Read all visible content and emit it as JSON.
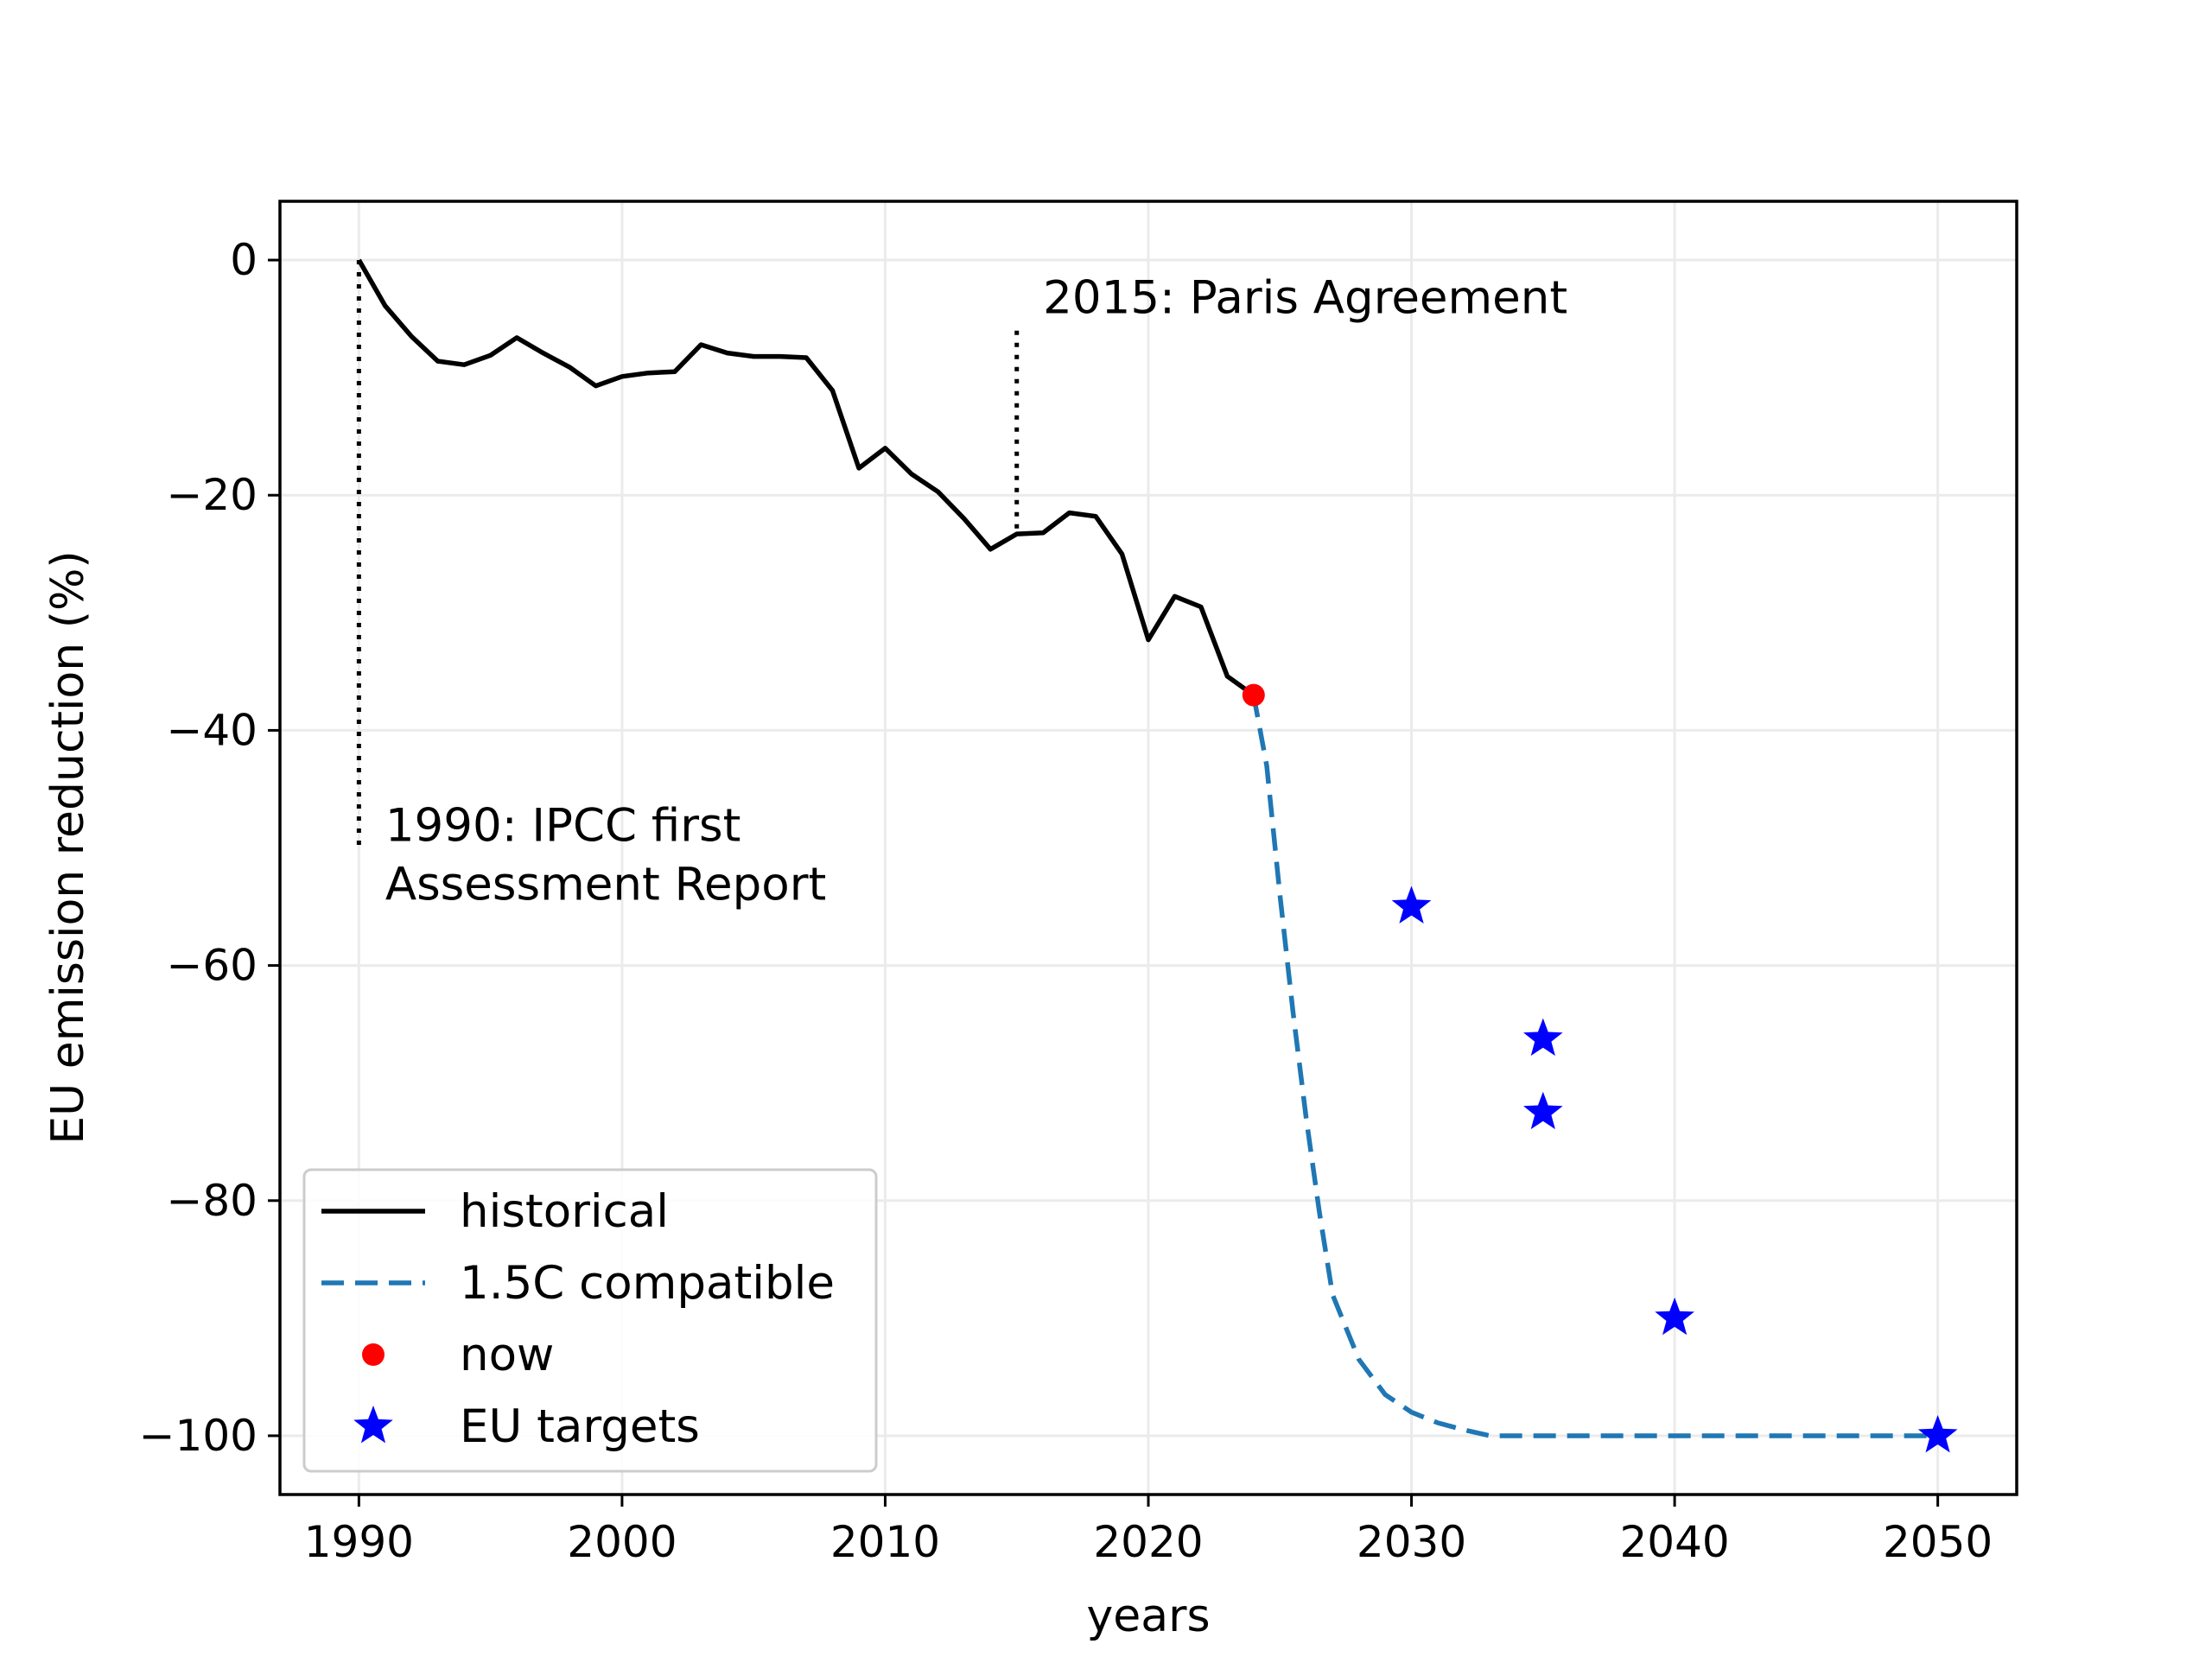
{
  "chart_data": {
    "type": "line",
    "title": "",
    "xlabel": "years",
    "ylabel": "EU emission reduction (%)",
    "xlim": [
      1987,
      2053
    ],
    "ylim": [
      -105,
      5
    ],
    "xticks": [
      1990,
      2000,
      2010,
      2020,
      2030,
      2040,
      2050
    ],
    "yticks": [
      0,
      -20,
      -40,
      -60,
      -80,
      -100
    ],
    "ytick_labels": [
      "0",
      "−20",
      "−40",
      "−60",
      "−80",
      "−100"
    ],
    "grid": true,
    "legend_position": "lower-left",
    "colors": {
      "historical": "#000000",
      "compatible": "#1f77b4",
      "now": "#ff0000",
      "targets": "#0000ff",
      "grid": "#ebebeb"
    },
    "series": [
      {
        "name": "historical",
        "style": "solid",
        "x": [
          1990,
          1991,
          1992,
          1993,
          1994,
          1995,
          1996,
          1997,
          1998,
          1999,
          2000,
          2001,
          2002,
          2003,
          2004,
          2005,
          2006,
          2007,
          2008,
          2009,
          2010,
          2011,
          2012,
          2013,
          2014,
          2015,
          2016,
          2017,
          2018,
          2019,
          2020,
          2021,
          2022,
          2023,
          2024
        ],
        "y": [
          0,
          -3.9,
          -6.5,
          -8.6,
          -8.9,
          -8.1,
          -6.6,
          -7.9,
          -9.1,
          -10.7,
          -9.9,
          -9.6,
          -9.5,
          -7.2,
          -7.9,
          -8.2,
          -8.2,
          -8.3,
          -11.1,
          -17.7,
          -16.0,
          -18.2,
          -19.7,
          -22.0,
          -24.6,
          -23.3,
          -23.2,
          -21.5,
          -21.8,
          -25.0,
          -32.3,
          -28.6,
          -29.5,
          -35.4,
          -37.0
        ]
      },
      {
        "name": "1.5C compatible",
        "style": "dashed",
        "x": [
          2024,
          2024.5,
          2025,
          2025.5,
          2026,
          2026.5,
          2027,
          2028,
          2029,
          2030,
          2031,
          2032,
          2033,
          2034,
          2036,
          2040,
          2045,
          2050
        ],
        "y": [
          -37.0,
          -43,
          -54,
          -64,
          -73,
          -81,
          -88,
          -93.5,
          -96.5,
          -98,
          -98.9,
          -99.5,
          -100,
          -100,
          -100,
          -100,
          -100,
          -100
        ]
      },
      {
        "name": "now",
        "marker": "circle",
        "x": [
          2024
        ],
        "y": [
          -37.0
        ]
      },
      {
        "name": "EU targets",
        "marker": "star",
        "x": [
          2030,
          2035,
          2035,
          2040,
          2050
        ],
        "y": [
          -55,
          -66.25,
          -72.5,
          -90,
          -100
        ]
      }
    ],
    "annotations": [
      {
        "text_lines": [
          "1990: IPCC first",
          "Assessment Report"
        ],
        "line_x": 1990,
        "line_y": [
          0,
          -50
        ],
        "text_x": 1991,
        "text_y": -50
      },
      {
        "text_lines": [
          "2015: Paris Agreement"
        ],
        "line_x": 2015,
        "line_y": [
          -6,
          -23.3
        ],
        "text_x": 2016,
        "text_y": -6
      }
    ],
    "legend": [
      "historical",
      "1.5C compatible",
      "now",
      "EU targets"
    ]
  }
}
